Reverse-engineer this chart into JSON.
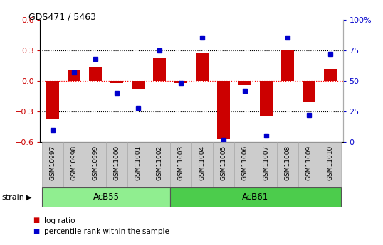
{
  "title": "GDS471 / 5463",
  "samples": [
    "GSM10997",
    "GSM10998",
    "GSM10999",
    "GSM11000",
    "GSM11001",
    "GSM11002",
    "GSM11003",
    "GSM11004",
    "GSM11005",
    "GSM11006",
    "GSM11007",
    "GSM11008",
    "GSM11009",
    "GSM11010"
  ],
  "log_ratio": [
    -0.38,
    0.1,
    0.13,
    -0.02,
    -0.08,
    0.22,
    -0.02,
    0.28,
    -0.57,
    -0.04,
    -0.35,
    0.3,
    -0.2,
    0.12
  ],
  "percentile": [
    10,
    57,
    68,
    40,
    28,
    75,
    48,
    85,
    2,
    42,
    5,
    85,
    22,
    72
  ],
  "groups": [
    {
      "label": "AcB55",
      "start": 0,
      "end": 5,
      "color": "#90EE90"
    },
    {
      "label": "AcB61",
      "start": 6,
      "end": 13,
      "color": "#4CCC4C"
    }
  ],
  "ylim_left": [
    -0.6,
    0.6
  ],
  "ylim_right": [
    0,
    100
  ],
  "yticks_left": [
    -0.6,
    -0.3,
    0.0,
    0.3,
    0.6
  ],
  "yticks_right": [
    0,
    25,
    50,
    75,
    100
  ],
  "ytick_labels_right": [
    "0",
    "25",
    "50",
    "75",
    "100%"
  ],
  "bar_color": "#CC0000",
  "dot_color": "#0000CC",
  "strain_label": "strain",
  "legend_items": [
    {
      "label": "log ratio",
      "color": "#CC0000"
    },
    {
      "label": "percentile rank within the sample",
      "color": "#0000CC"
    }
  ],
  "tick_color_left": "#CC0000",
  "tick_color_right": "#0000CC",
  "background_color": "#ffffff",
  "sample_box_color": "#cccccc",
  "sample_box_edge": "#aaaaaa"
}
